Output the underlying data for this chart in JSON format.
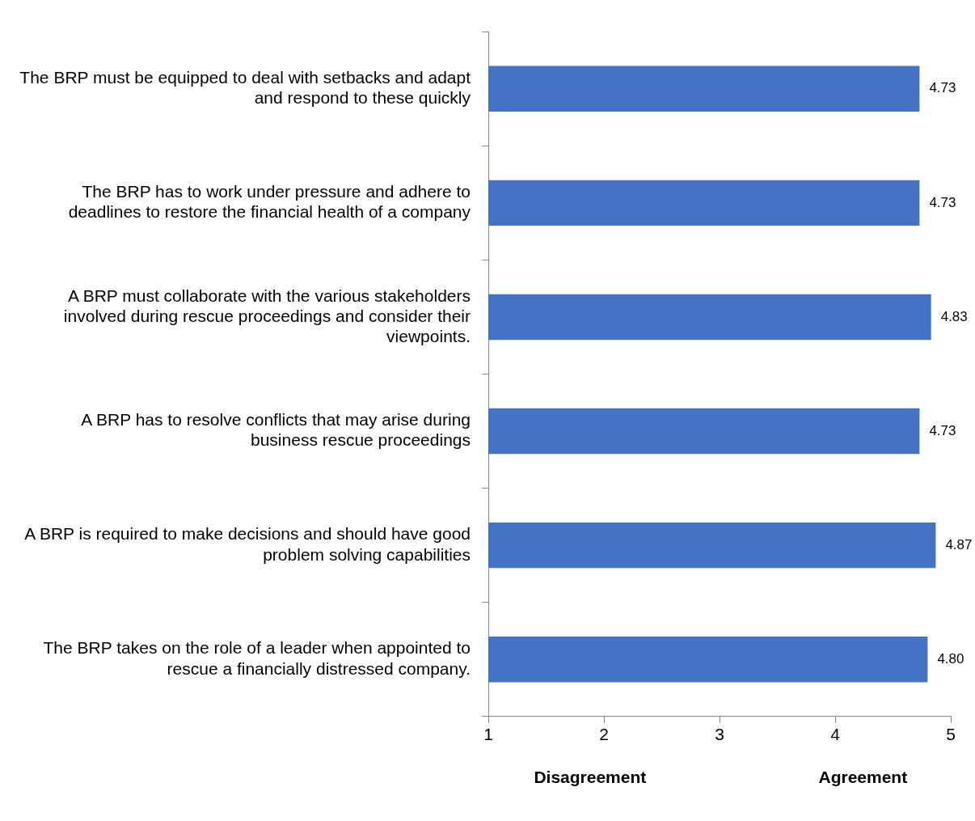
{
  "chart_data": {
    "type": "bar",
    "orientation": "horizontal",
    "categories": [
      "The BRP must be equipped to deal with setbacks and adapt and respond to these quickly",
      "The BRP has to work under pressure and adhere to deadlines to restore the financial health of a company",
      "A BRP must collaborate with the various stakeholders involved during rescue proceedings and consider their viewpoints.",
      "A BRP has to resolve conflicts that may arise during business rescue proceedings",
      "A BRP is required to make decisions and should have good problem solving capabilities",
      "The BRP takes on the role of a leader when appointed to rescue a financially distressed company."
    ],
    "values": [
      4.73,
      4.73,
      4.83,
      4.73,
      4.87,
      4.8
    ],
    "value_labels": [
      "4.73",
      "4.73",
      "4.83",
      "4.73",
      "4.87",
      "4.80"
    ],
    "color": "#4472c4",
    "xlim": [
      1,
      5
    ],
    "xticks": [
      1,
      2,
      3,
      4,
      5
    ],
    "grid": false,
    "legend": false,
    "annotations": [
      "Disagreement",
      "Agreement"
    ]
  }
}
